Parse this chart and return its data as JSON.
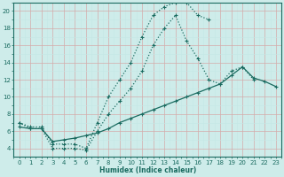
{
  "xlabel": "Humidex (Indice chaleur)",
  "bg_color": "#ceecea",
  "line_color": "#1a6b60",
  "xlim": [
    -0.5,
    23.5
  ],
  "ylim": [
    3,
    21
  ],
  "xticks": [
    0,
    1,
    2,
    3,
    4,
    5,
    6,
    7,
    8,
    9,
    10,
    11,
    12,
    13,
    14,
    15,
    16,
    17,
    18,
    19,
    20,
    21,
    22,
    23
  ],
  "yticks": [
    4,
    6,
    8,
    10,
    12,
    14,
    16,
    18,
    20
  ],
  "curve1_x": [
    0,
    1,
    2,
    3,
    4,
    5,
    6,
    7,
    8,
    9,
    10,
    11,
    12,
    13,
    14,
    15,
    16,
    17
  ],
  "curve1_y": [
    7,
    6.5,
    6.5,
    4.5,
    4.5,
    4.5,
    4,
    7,
    10,
    12,
    14,
    17,
    19.5,
    20.5,
    21,
    21,
    19.5,
    19
  ],
  "curve2_x": [
    0,
    1,
    2,
    3,
    4,
    5,
    6,
    7,
    8,
    9,
    10,
    11,
    12,
    13,
    14,
    15,
    16,
    17,
    18,
    19,
    20,
    21
  ],
  "curve2_y": [
    7,
    6.3,
    6.3,
    4,
    4,
    4,
    3.8,
    6,
    8,
    9.5,
    11,
    13,
    16,
    18,
    19.5,
    16.5,
    14.5,
    12,
    11.5,
    13,
    13.5,
    12
  ],
  "curve3_x": [
    0,
    1,
    2,
    3,
    4,
    5,
    6,
    7,
    8,
    9,
    10,
    11,
    12,
    13,
    14,
    15,
    16,
    17,
    18,
    19,
    20,
    21,
    22,
    23
  ],
  "curve3_y": [
    6.5,
    6.3,
    6.3,
    4.8,
    5,
    5.2,
    5.5,
    5.8,
    6.3,
    7,
    7.5,
    8,
    8.5,
    9,
    9.5,
    10,
    10.5,
    11,
    11.5,
    12.5,
    13.5,
    12.2,
    11.8,
    11.2
  ]
}
